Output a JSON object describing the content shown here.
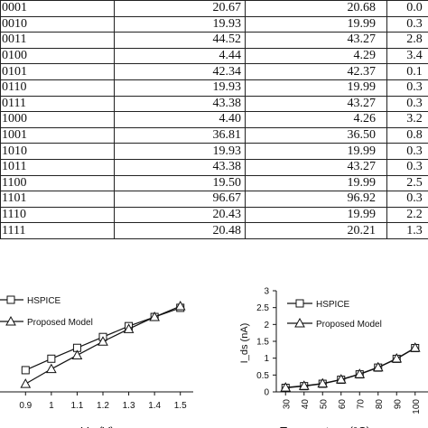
{
  "table": {
    "rows": [
      [
        "0001",
        "20.67",
        "20.68",
        "0.0"
      ],
      [
        "0010",
        "19.93",
        "19.99",
        "0.3"
      ],
      [
        "0011",
        "44.52",
        "43.27",
        "2.8"
      ],
      [
        "0100",
        "4.44",
        "4.29",
        "3.4"
      ],
      [
        "0101",
        "42.34",
        "42.37",
        "0.1"
      ],
      [
        "0110",
        "19.93",
        "19.99",
        "0.3"
      ],
      [
        "0111",
        "43.38",
        "43.27",
        "0.3"
      ],
      [
        "1000",
        "4.40",
        "4.26",
        "3.2"
      ],
      [
        "1001",
        "36.81",
        "36.50",
        "0.8"
      ],
      [
        "1010",
        "19.93",
        "19.99",
        "0.3"
      ],
      [
        "1011",
        "43.38",
        "43.27",
        "0.3"
      ],
      [
        "1100",
        "19.50",
        "19.99",
        "2.5"
      ],
      [
        "1101",
        "96.67",
        "96.92",
        "0.3"
      ],
      [
        "1110",
        "20.43",
        "19.99",
        "2.2"
      ],
      [
        "1111",
        "20.48",
        "20.21",
        "1.3"
      ]
    ]
  },
  "chart_data": [
    {
      "type": "line",
      "xlabel": "V_ (V)",
      "ylabel": "",
      "x_ticks": [
        "0.9",
        "1",
        "1.1",
        "1.2",
        "1.3",
        "1.4",
        "1.5"
      ],
      "xlim": [
        0.85,
        1.55
      ],
      "ylim": [
        0,
        1.8
      ],
      "series": [
        {
          "name": "HSPICE",
          "marker": "square",
          "x": [
            0.9,
            1.0,
            1.1,
            1.2,
            1.3,
            1.4,
            1.5
          ],
          "y": [
            0.38,
            0.58,
            0.77,
            0.96,
            1.15,
            1.31,
            1.47
          ]
        },
        {
          "name": "Proposed Model",
          "marker": "triangle",
          "x": [
            0.9,
            1.0,
            1.1,
            1.2,
            1.3,
            1.4,
            1.5
          ],
          "y": [
            0.14,
            0.4,
            0.64,
            0.88,
            1.1,
            1.31,
            1.5
          ]
        }
      ]
    },
    {
      "type": "line",
      "xlabel": "Temperature (°C)",
      "ylabel": "I_ds (nA)",
      "y_ticks": [
        "0",
        "0.5",
        "1",
        "1.5",
        "2",
        "2.5",
        "3"
      ],
      "x_ticks": [
        "30",
        "40",
        "50",
        "60",
        "70",
        "80",
        "90",
        "100"
      ],
      "xlim": [
        25,
        105
      ],
      "ylim": [
        0,
        3
      ],
      "series": [
        {
          "name": "HSPICE",
          "marker": "square",
          "x": [
            30,
            40,
            50,
            60,
            70,
            80,
            90,
            100
          ],
          "y": [
            0.12,
            0.17,
            0.24,
            0.36,
            0.52,
            0.72,
            0.98,
            1.3
          ]
        },
        {
          "name": "Proposed Model",
          "marker": "triangle",
          "x": [
            30,
            40,
            50,
            60,
            70,
            80,
            90,
            100
          ],
          "y": [
            0.13,
            0.18,
            0.25,
            0.37,
            0.53,
            0.73,
            0.99,
            1.31
          ]
        }
      ]
    }
  ]
}
